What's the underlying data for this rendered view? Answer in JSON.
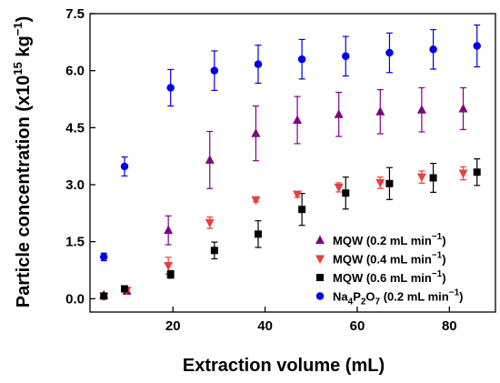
{
  "chart_data": {
    "type": "scatter",
    "xlabel": "Extraction volume (mL)",
    "ylabel": "Particle concentration (x10",
    "ylabel_sup1": "15",
    "ylabel_mid": " kg",
    "ylabel_sup2": "−1",
    "ylabel_end": ")",
    "xlim": [
      2,
      90
    ],
    "ylim": [
      -0.35,
      7.5
    ],
    "xticks": [
      20,
      40,
      60,
      80
    ],
    "yticks": [
      0.0,
      1.5,
      3.0,
      4.5,
      6.0,
      7.5
    ],
    "ytick_labels": [
      "0.0",
      "1.5",
      "3.0",
      "4.5",
      "6.0",
      "7.5"
    ],
    "legend_position": "bottom-right",
    "grid": false,
    "series": [
      {
        "name": "MQW (0.2 mL min",
        "name_sup": "−1",
        "name_end": ")",
        "marker": "triangle-up",
        "color": "#800080",
        "x": [
          5,
          10,
          19,
          28,
          38,
          47,
          56,
          65,
          74,
          83
        ],
        "y": [
          0.1,
          0.2,
          1.8,
          3.65,
          4.35,
          4.7,
          4.85,
          4.92,
          4.97,
          5.0
        ],
        "err": [
          0.05,
          0.05,
          0.38,
          0.75,
          0.72,
          0.62,
          0.58,
          0.58,
          0.58,
          0.55
        ]
      },
      {
        "name": "MQW (0.4 mL min",
        "name_sup": "−1",
        "name_end": ")",
        "marker": "triangle-down",
        "color": "#e8403c",
        "x": [
          5,
          10,
          19,
          28,
          38,
          47,
          56,
          65,
          74,
          83
        ],
        "y": [
          0.07,
          0.22,
          0.87,
          2.0,
          2.6,
          2.75,
          2.93,
          3.05,
          3.2,
          3.3
        ],
        "err": [
          0.04,
          0.06,
          0.22,
          0.15,
          0.05,
          0.08,
          0.12,
          0.15,
          0.16,
          0.17
        ]
      },
      {
        "name": "MQW (0.6 mL min",
        "name_sup": "−1",
        "name_end": ")",
        "marker": "square",
        "color": "#000000",
        "x": [
          5,
          9.5,
          19.5,
          29,
          38.5,
          48,
          57.5,
          67,
          76.5,
          86
        ],
        "y": [
          0.07,
          0.26,
          0.64,
          1.27,
          1.7,
          2.35,
          2.78,
          3.03,
          3.18,
          3.33
        ],
        "err": [
          0.03,
          0.04,
          0.1,
          0.22,
          0.35,
          0.42,
          0.42,
          0.42,
          0.38,
          0.35
        ]
      },
      {
        "name": "Na",
        "name_sub1": "4",
        "name_mid": "P",
        "name_sub2": "2",
        "name_mid2": "O",
        "name_sub3": "7",
        "name_end": " (0.2 mL min",
        "name_sup": "−1",
        "name_end2": ")",
        "marker": "circle",
        "color": "#0000e6",
        "x": [
          5,
          9.5,
          19.5,
          29,
          38.5,
          48,
          57.5,
          67,
          76.5,
          86
        ],
        "y": [
          1.1,
          3.48,
          5.55,
          6.0,
          6.17,
          6.3,
          6.38,
          6.47,
          6.56,
          6.65
        ],
        "err": [
          0.1,
          0.25,
          0.48,
          0.52,
          0.5,
          0.52,
          0.52,
          0.52,
          0.52,
          0.55
        ]
      }
    ]
  }
}
